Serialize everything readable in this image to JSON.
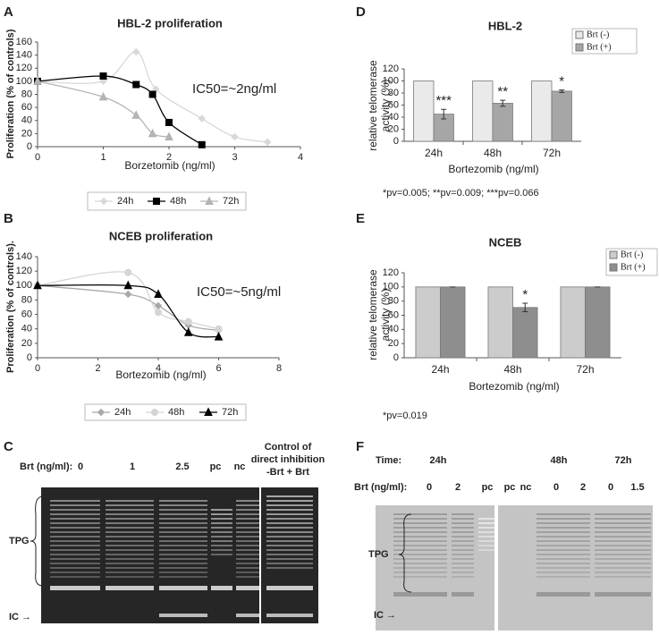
{
  "chart_data": [
    {
      "type": "line",
      "panel_label": "A",
      "title": "HBL-2 proliferation",
      "ylabel": "Proliferation (% of controls)",
      "xlabel": "Borzetomib  (ng/ml)",
      "annotation": "IC50=~2ng/ml",
      "xlim": [
        0,
        4
      ],
      "xticks": [
        0,
        1,
        2,
        3,
        4
      ],
      "ylim": [
        0,
        160
      ],
      "yticks": [
        0,
        20,
        40,
        60,
        80,
        100,
        120,
        140,
        160
      ],
      "series": [
        {
          "name": "24h",
          "color": "#d8d8d8",
          "marker": "diamond",
          "x": [
            0,
            1,
            1.5,
            1.8,
            2.5,
            3,
            3.5
          ],
          "values": [
            100,
            100,
            145,
            88,
            43,
            15,
            7
          ]
        },
        {
          "name": "48h",
          "color": "#000000",
          "marker": "square",
          "x": [
            0,
            1,
            1.5,
            1.75,
            2,
            2.5
          ],
          "values": [
            100,
            108,
            95,
            80,
            37,
            3
          ]
        },
        {
          "name": "72h",
          "color": "#b4b4b4",
          "marker": "triangle",
          "x": [
            0,
            1,
            1.5,
            1.75,
            2
          ],
          "values": [
            100,
            76,
            48,
            20,
            15
          ]
        }
      ]
    },
    {
      "type": "line",
      "panel_label": "B",
      "title": "NCEB proliferation",
      "ylabel": "Proliferation (% of controls).",
      "xlabel": "Bortezomib (ng/ml)",
      "annotation": "IC50=~5ng/ml",
      "xlim": [
        0,
        8
      ],
      "xticks": [
        0,
        2,
        4,
        6,
        8
      ],
      "ylim": [
        0,
        140
      ],
      "yticks": [
        0,
        20,
        40,
        60,
        80,
        100,
        120,
        140
      ],
      "series": [
        {
          "name": "24h",
          "color": "#a8a8a8",
          "marker": "diamond",
          "x": [
            0,
            3,
            4,
            5,
            6
          ],
          "values": [
            100,
            88,
            72,
            45,
            38
          ]
        },
        {
          "name": "48h",
          "color": "#d4d4d4",
          "marker": "circle",
          "x": [
            0,
            3,
            4,
            5,
            6
          ],
          "values": [
            100,
            118,
            63,
            50,
            40
          ]
        },
        {
          "name": "72h",
          "color": "#000000",
          "marker": "triangle",
          "x": [
            0,
            3,
            4,
            5,
            6
          ],
          "values": [
            100,
            100,
            88,
            35,
            29
          ]
        }
      ]
    },
    {
      "type": "bar",
      "panel_label": "D",
      "title": "HBL-2",
      "ylabel": [
        "relative telomerase",
        "activity (%)"
      ],
      "xlabel": "Bortezomib (ng/ml)",
      "footnote": "*pv=0.005; **pv=0.009; ***pv=0.066",
      "categories": [
        "24h",
        "48h",
        "72h"
      ],
      "ylim": [
        0,
        120
      ],
      "yticks": [
        0,
        20,
        40,
        60,
        80,
        100,
        120
      ],
      "series": [
        {
          "name": "Brt (-)",
          "color": "#eaeaea",
          "values": [
            100,
            100,
            100
          ]
        },
        {
          "name": "Brt (+)",
          "color": "#a6a6a6",
          "values": [
            45,
            63,
            83
          ],
          "errors": [
            8,
            5,
            2
          ]
        }
      ],
      "significance": [
        "***",
        "**",
        "*"
      ]
    },
    {
      "type": "bar",
      "panel_label": "E",
      "title": "NCEB",
      "ylabel": [
        "relative telomerase",
        "activity (%)"
      ],
      "xlabel": "Bortezomib (ng/ml)",
      "footnote": "*pv=0.019",
      "categories": [
        "24h",
        "48h",
        "72h"
      ],
      "ylim": [
        0,
        120
      ],
      "yticks": [
        0,
        20,
        40,
        60,
        80,
        100,
        120
      ],
      "series": [
        {
          "name": "Brt (-)",
          "color": "#cccccc",
          "values": [
            100,
            100,
            100
          ]
        },
        {
          "name": "Brt (+)",
          "color": "#8e8e8e",
          "values": [
            100,
            71,
            100
          ],
          "errors": [
            0,
            6,
            0
          ]
        }
      ],
      "significance": [
        null,
        "*",
        null
      ]
    }
  ],
  "gels": [
    {
      "panel_label": "C",
      "brt_label": "Brt (ng/ml):",
      "lanes": [
        "0",
        "1",
        "2.5",
        "pc",
        "nc"
      ],
      "control_label": [
        "Control of",
        "direct inhibition",
        "-Brt  + Brt"
      ],
      "tpg_label": "TPG",
      "ic_label": "IC →"
    },
    {
      "panel_label": "F",
      "time_label": "Time:",
      "times": [
        "24h",
        "48h",
        "72h"
      ],
      "brt_label": "Brt (ng/ml):",
      "lanes": [
        "0",
        "2",
        "pc",
        "pc",
        "nc",
        "0",
        "2",
        "0",
        "1.5"
      ],
      "tpg_label": "TPG",
      "ic_label": "IC →"
    }
  ]
}
